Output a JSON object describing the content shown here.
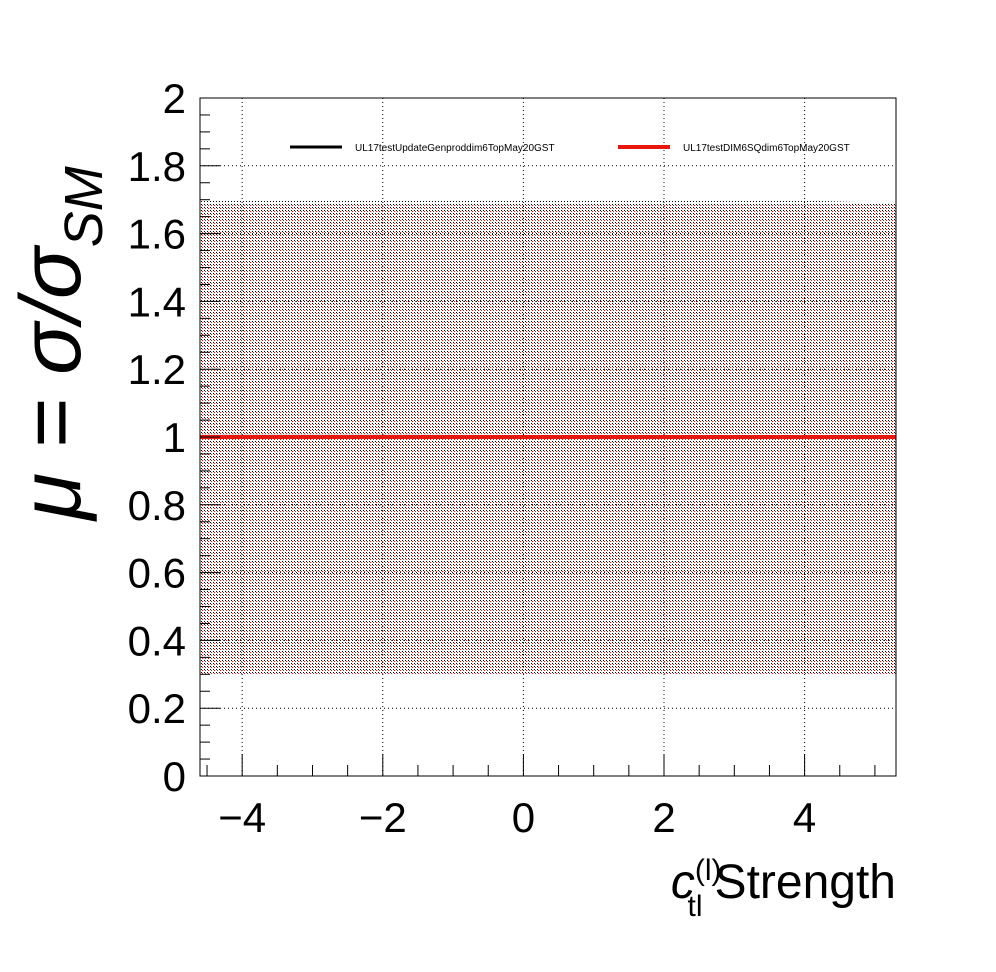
{
  "chart_data": {
    "type": "line",
    "title": "",
    "xlabel": {
      "main": "c",
      "sub": "tl",
      "sup": "(l)",
      "suffix": "Strength"
    },
    "ylabel": {
      "prefix": "μ = σ/σ",
      "sub": "SM"
    },
    "xlim": [
      -4.6,
      5.3
    ],
    "ylim": [
      0,
      2
    ],
    "x_ticks": [
      {
        "v": -4,
        "label": "−4"
      },
      {
        "v": -2,
        "label": "−2"
      },
      {
        "v": 0,
        "label": "0"
      },
      {
        "v": 2,
        "label": "2"
      },
      {
        "v": 4,
        "label": "4"
      }
    ],
    "y_ticks": [
      {
        "v": 0,
        "label": "0"
      },
      {
        "v": 0.2,
        "label": "0.2"
      },
      {
        "v": 0.4,
        "label": "0.4"
      },
      {
        "v": 0.6,
        "label": "0.6"
      },
      {
        "v": 0.8,
        "label": "0.8"
      },
      {
        "v": 1,
        "label": "1"
      },
      {
        "v": 1.2,
        "label": "1.2"
      },
      {
        "v": 1.4,
        "label": "1.4"
      },
      {
        "v": 1.6,
        "label": "1.6"
      },
      {
        "v": 1.8,
        "label": "1.8"
      },
      {
        "v": 2,
        "label": "2"
      }
    ],
    "grid": true,
    "legend_position": "top",
    "series": [
      {
        "name": "UL17testUpdateGenproddim6TopMay20GST",
        "color": "#000000",
        "x": [
          -4.6,
          -1.6,
          1.0,
          3.6,
          5.3
        ],
        "y": [
          1.002,
          1.002,
          1.001,
          1.0,
          1.0
        ],
        "band_low": [
          0.3,
          0.3,
          0.3,
          0.3,
          0.3
        ],
        "band_high": [
          1.7,
          1.7,
          1.7,
          1.7,
          1.69
        ]
      },
      {
        "name": "UL17testDIM6SQdim6TopMay20GST",
        "color": "#e8160c",
        "x": [
          -4.6,
          -1.6,
          1.0,
          3.6,
          5.3
        ],
        "y": [
          1.0,
          1.0,
          1.0,
          1.0,
          1.0
        ],
        "band_low": [
          0.3,
          0.3,
          0.3,
          0.3,
          0.3
        ],
        "band_high": [
          1.69,
          1.69,
          1.69,
          1.69,
          1.69
        ]
      }
    ]
  }
}
